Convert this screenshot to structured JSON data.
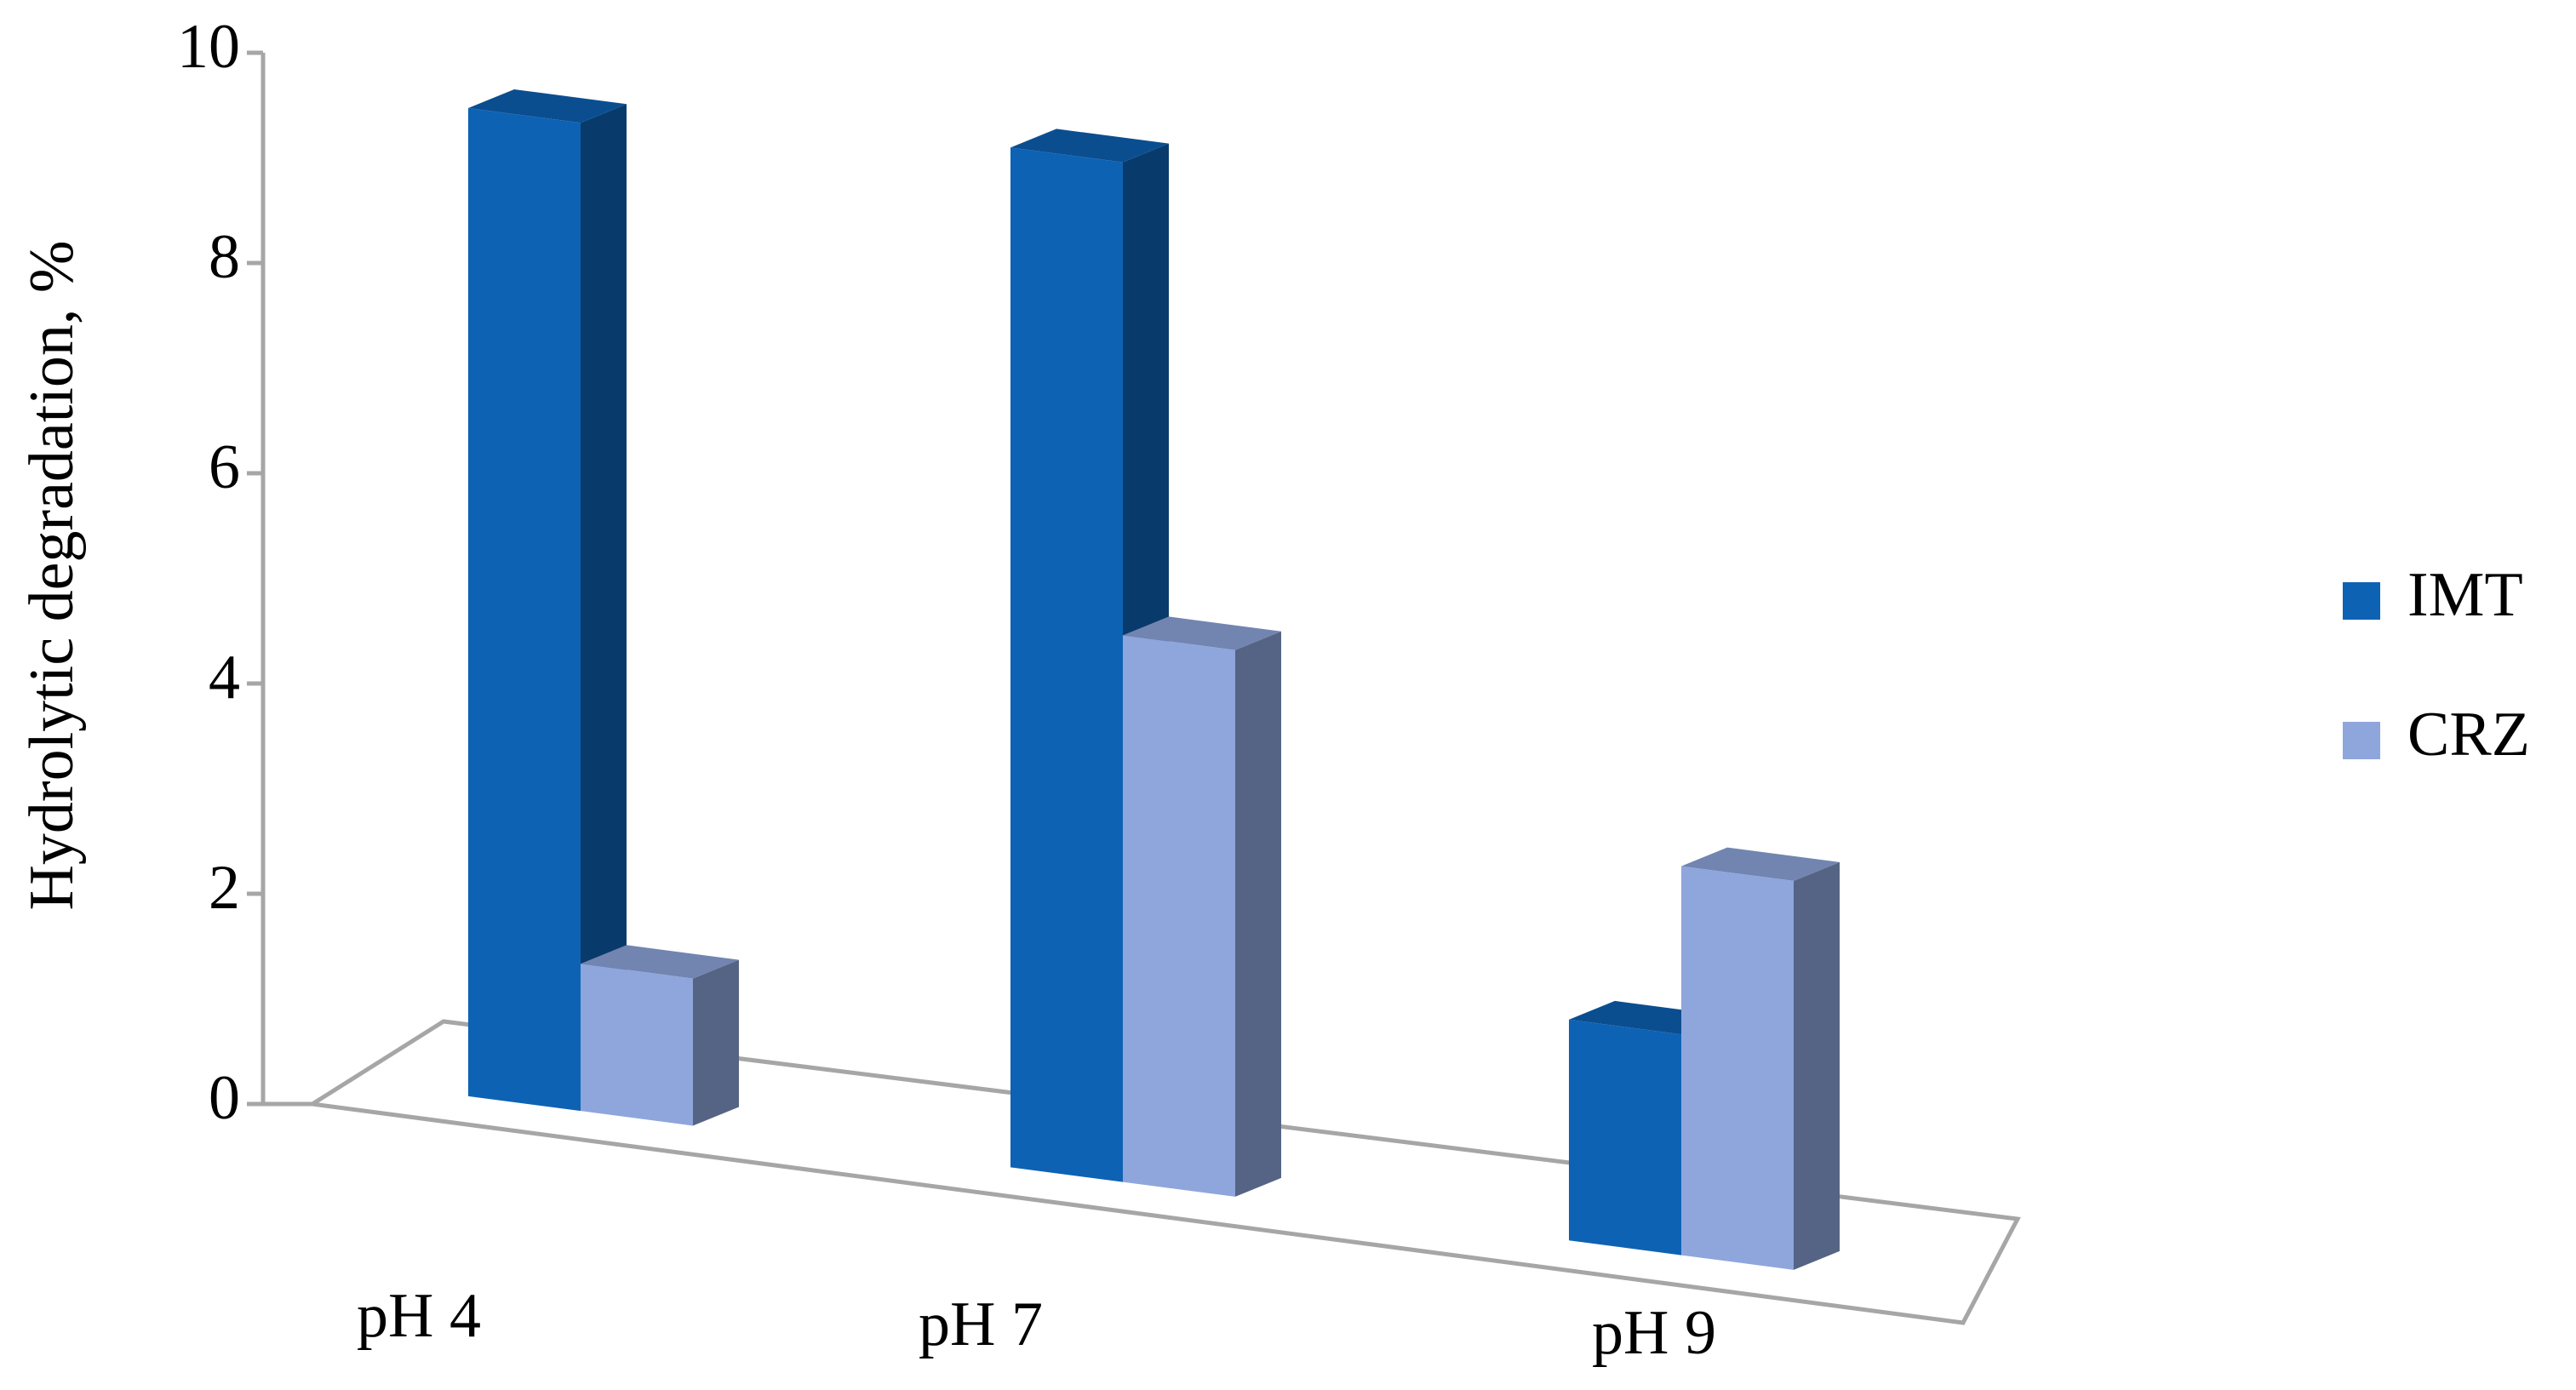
{
  "chart_data": {
    "type": "bar3d",
    "y_label": "Hydrolytic degradation, %",
    "categories": [
      "pH 4",
      "pH 7",
      "pH 9"
    ],
    "series": [
      {
        "name": "IMT",
        "color": "#0e62b4",
        "values": [
          9.4,
          9.7,
          2.1
        ]
      },
      {
        "name": "CRZ",
        "color": "#8ea6dc",
        "values": [
          1.4,
          5.2,
          3.7
        ]
      }
    ],
    "ylim": [
      0,
      10
    ],
    "yticks": [
      0,
      2,
      4,
      6,
      8,
      10
    ],
    "legend": "right"
  }
}
